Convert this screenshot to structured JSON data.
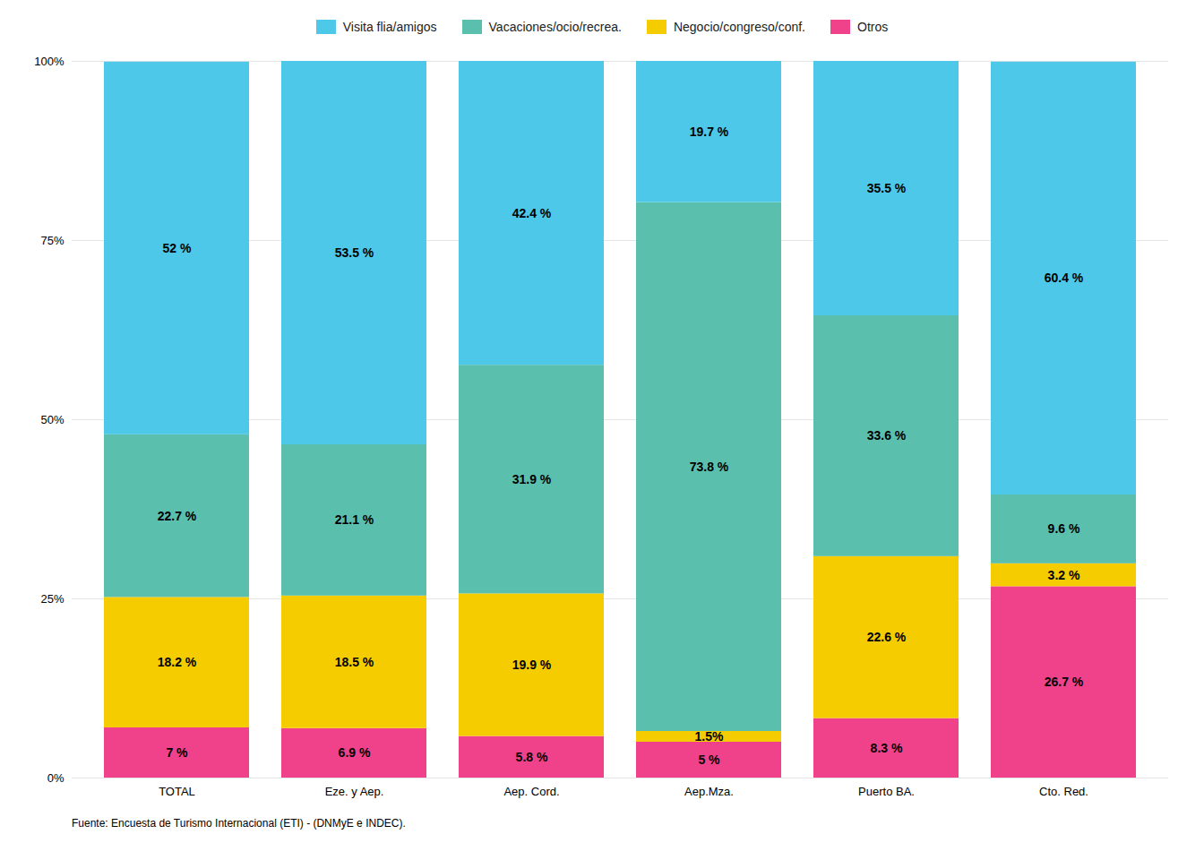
{
  "chart_data": {
    "type": "bar",
    "stacked": true,
    "categories": [
      "TOTAL",
      "Eze. y Aep.",
      "Aep. Cord.",
      "Aep.Mza.",
      "Puerto BA.",
      "Cto. Red."
    ],
    "series": [
      {
        "name": "Otros",
        "color": "#F0428A",
        "values": [
          7.0,
          6.9,
          5.8,
          5.0,
          8.3,
          26.7
        ],
        "value_labels": [
          "7 %",
          "6.9 %",
          "5.8 %",
          "5 %",
          "8.3 %",
          "26.7 %"
        ]
      },
      {
        "name": "Negocio/congreso/conf.",
        "color": "#F5CC00",
        "values": [
          18.2,
          18.5,
          19.9,
          1.5,
          22.6,
          3.2
        ],
        "value_labels": [
          "18.2 %",
          "18.5 %",
          "19.9 %",
          "1.5%",
          "22.6 %",
          "3.2 %"
        ]
      },
      {
        "name": "Vacaciones/ocio/recrea.",
        "color": "#5BBFAD",
        "values": [
          22.7,
          21.1,
          31.9,
          73.8,
          33.6,
          9.6
        ],
        "value_labels": [
          "22.7 %",
          "21.1 %",
          "31.9 %",
          "73.8 %",
          "33.6 %",
          "9.6 %"
        ]
      },
      {
        "name": "Visita flia/amigos",
        "color": "#4DC8E8",
        "values": [
          52.0,
          53.5,
          42.4,
          19.7,
          35.5,
          60.4
        ],
        "value_labels": [
          "52 %",
          "53.5 %",
          "42.4 %",
          "19.7 %",
          "35.5 %",
          "60.4 %"
        ]
      }
    ],
    "ylim": [
      0,
      100
    ],
    "yticks": [
      {
        "value": 0,
        "label": "0%"
      },
      {
        "value": 25,
        "label": "25%"
      },
      {
        "value": 50,
        "label": "50%"
      },
      {
        "value": 75,
        "label": "75%"
      },
      {
        "value": 100,
        "label": "100%"
      }
    ],
    "grid": true,
    "legend": "top",
    "data_labels": true,
    "caption": "Fuente: Encuesta de Turismo Internacional (ETI) - (DNMyE e INDEC)."
  }
}
